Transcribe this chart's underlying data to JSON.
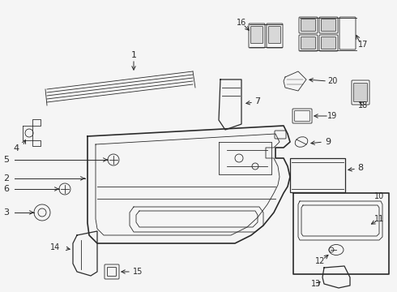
{
  "bg_color": "#f5f5f5",
  "line_color": "#2a2a2a",
  "label_color": "#111111",
  "figsize": [
    4.9,
    3.6
  ],
  "dpi": 100,
  "xlim": [
    0,
    490
  ],
  "ylim": [
    0,
    360
  ]
}
